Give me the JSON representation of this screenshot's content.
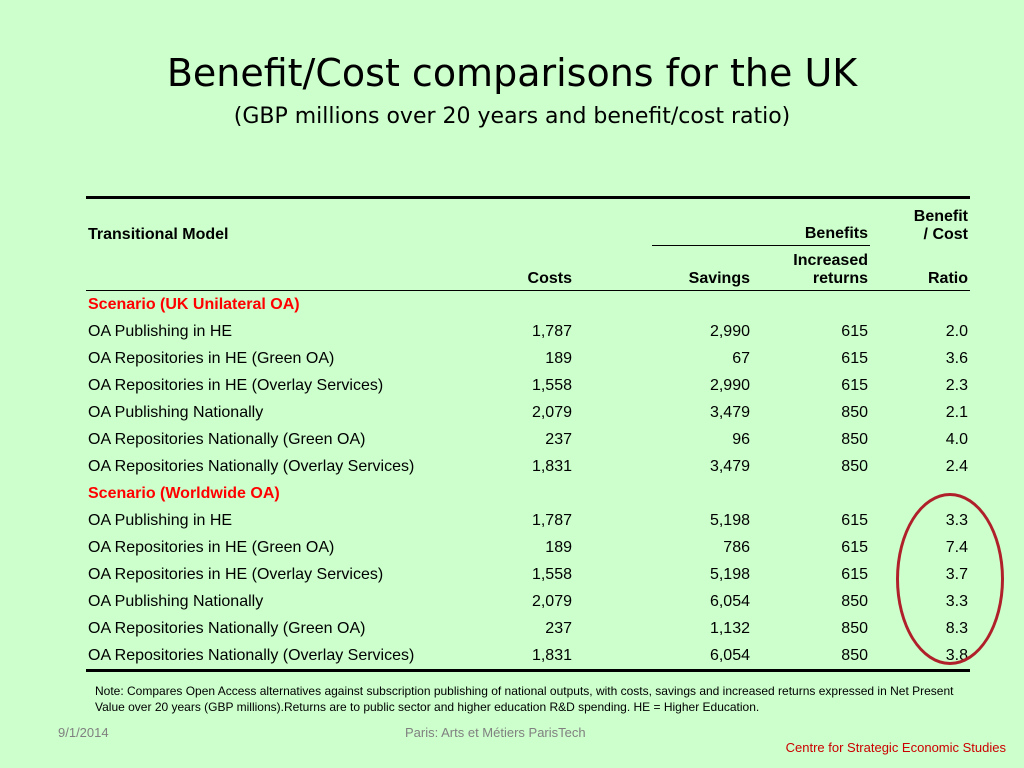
{
  "slide": {
    "title": "Benefit/Cost comparisons for the UK",
    "subtitle": "(GBP millions over 20 years and benefit/cost ratio)"
  },
  "table": {
    "header": {
      "transitional_model": "Transitional Model",
      "benefits": "Benefits",
      "benefit_cost_top": "Benefit",
      "benefit_cost_bottom": "/ Cost",
      "costs": "Costs",
      "savings": "Savings",
      "increased_top": "Increased",
      "increased_bottom": "returns",
      "ratio": "Ratio"
    },
    "sections": [
      {
        "scenario": "Scenario (UK Unilateral OA)",
        "rows": [
          {
            "model": "OA Publishing in HE",
            "costs": "1,787",
            "savings": "2,990",
            "returns": "615",
            "ratio": "2.0"
          },
          {
            "model": "OA Repositories in HE (Green OA)",
            "costs": "189",
            "savings": "67",
            "returns": "615",
            "ratio": "3.6"
          },
          {
            "model": "OA Repositories in HE (Overlay Services)",
            "costs": "1,558",
            "savings": "2,990",
            "returns": "615",
            "ratio": "2.3"
          },
          {
            "model": "OA Publishing Nationally",
            "costs": "2,079",
            "savings": "3,479",
            "returns": "850",
            "ratio": "2.1"
          },
          {
            "model": "OA Repositories Nationally (Green OA)",
            "costs": "237",
            "savings": "96",
            "returns": "850",
            "ratio": "4.0"
          },
          {
            "model": "OA Repositories Nationally (Overlay Services)",
            "costs": "1,831",
            "savings": "3,479",
            "returns": "850",
            "ratio": "2.4"
          }
        ]
      },
      {
        "scenario": "Scenario (Worldwide OA)",
        "rows": [
          {
            "model": "OA Publishing in HE",
            "costs": "1,787",
            "savings": "5,198",
            "returns": "615",
            "ratio": "3.3"
          },
          {
            "model": "OA Repositories in HE (Green OA)",
            "costs": "189",
            "savings": "786",
            "returns": "615",
            "ratio": "7.4"
          },
          {
            "model": "OA Repositories in HE (Overlay Services)",
            "costs": "1,558",
            "savings": "5,198",
            "returns": "615",
            "ratio": "3.7"
          },
          {
            "model": "OA Publishing Nationally",
            "costs": "2,079",
            "savings": "6,054",
            "returns": "850",
            "ratio": "3.3"
          },
          {
            "model": "OA Repositories Nationally (Green OA)",
            "costs": "237",
            "savings": "1,132",
            "returns": "850",
            "ratio": "8.3"
          },
          {
            "model": "OA Repositories Nationally (Overlay Services)",
            "costs": "1,831",
            "savings": "6,054",
            "returns": "850",
            "ratio": "3.8"
          }
        ]
      }
    ]
  },
  "note": "Note: Compares Open Access alternatives against subscription publishing of national outputs, with costs, savings and increased returns expressed in Net Present Value over 20 years (GBP millions).Returns are to public sector and higher education R&D spending. HE = Higher Education.",
  "footer": {
    "date": "9/1/2014",
    "venue": "Paris: Arts et Métiers ParisTech",
    "organization": "Centre for Strategic Economic Studies"
  },
  "colors": {
    "background": "#ccffcc",
    "scenario_text": "#ff0000",
    "highlight_circle": "#b0202a",
    "footer_org": "#cc0000",
    "footer_gray": "#808080"
  }
}
